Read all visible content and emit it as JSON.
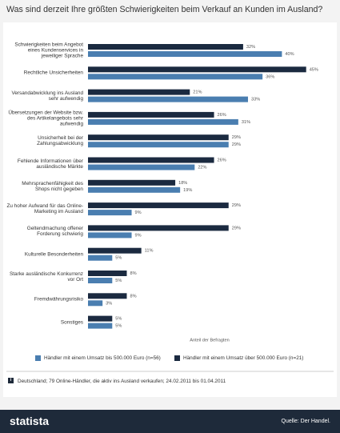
{
  "chart_data": {
    "type": "bar",
    "orientation": "horizontal",
    "title": "Was sind derzeit Ihre größten Schwierigkeiten beim Verkauf an Kunden im Ausland?",
    "x_label": "Anteil der Befragten",
    "categories": [
      "Schwierigkeiten beim Angebot eines Kundenservices in jeweiliger Sprache",
      "Rechtliche Unsicherheiten",
      "Versandabwicklung ins Ausland sehr aufwendig",
      "Übersetzungen der Website bzw. des Artikelangebots sehr aufwendig",
      "Unsicherheit bei der Zahlungsabwicklung",
      "Fehlende Informationen über ausländische Märkte",
      "Mehrsprachenfähigkeit des Shops nicht gegeben",
      "Zu hoher Aufwand für das Online-Marketing im Ausland",
      "Geltendmachung offener Forderung schwierig",
      "Kulturelle Besonderheiten",
      "Starke ausländische Konkurrenz vor Ort",
      "Fremdwährungsrisiko",
      "Sonstiges"
    ],
    "series": [
      {
        "name": "Händler mit einem Umsatz bis 500.000 Euro (n=56)",
        "color": "#4a7eb0",
        "values": [
          40,
          36,
          33,
          31,
          29,
          22,
          19,
          9,
          9,
          5,
          5,
          3,
          5
        ],
        "value_labels": [
          "40%",
          "36%",
          "33%",
          "31%",
          "29%",
          "22%",
          "19%",
          "9%",
          "9%",
          "5%",
          "5%",
          "3%",
          "5%"
        ]
      },
      {
        "name": "Händler mit einem Umsatz über 500.000 Euro (n=21)",
        "color": "#1b2a40",
        "values": [
          32,
          45,
          21,
          26,
          29,
          26,
          18,
          29,
          29,
          11,
          8,
          8,
          5
        ],
        "value_labels": [
          "32%",
          "45%",
          "21%",
          "26%",
          "29%",
          "26%",
          "18%",
          "29%",
          "29%",
          "11%",
          "8%",
          "8%",
          "5%"
        ]
      }
    ],
    "xlim": [
      0,
      50
    ],
    "footnote": "Deutschland; 79 Online-Händler, die aktiv ins Ausland verkaufen; 24.02.2011 bis 01.04.2011",
    "brand": "statista",
    "source": "Quelle: Der Handel."
  }
}
